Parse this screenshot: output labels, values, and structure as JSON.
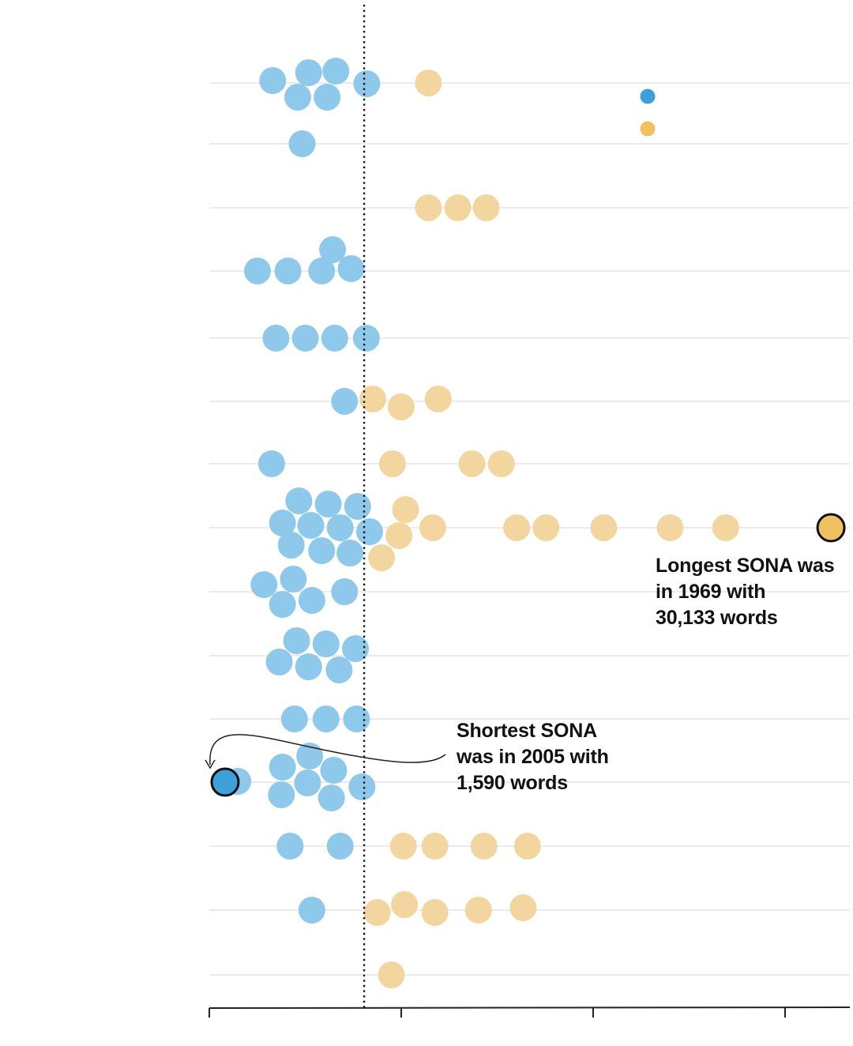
{
  "colors": {
    "below_avg": "#8ec8ea",
    "above_avg": "#f3d69f",
    "highlight_below": "#3ea0d8",
    "highlight_above": "#efc161",
    "legend_below": "#3ea0d8",
    "legend_above": "#efc161",
    "gridline": "#d7d7d7",
    "axis": "#222222"
  },
  "annotations": {
    "longest": "Longest SONA was\nin 1969 with\n30,133 words",
    "shortest": "Shortest SONA\nwas in 2005 with\n1,590 words"
  },
  "chart_data": {
    "type": "scatter",
    "title": "",
    "xlabel": "",
    "ylabel": "",
    "xlim": [
      1590,
      31000
    ],
    "average_line": 8700,
    "rows": 15,
    "series": [
      {
        "group": "below",
        "points": [
          {
            "row": 0,
            "x": 4500
          },
          {
            "row": 0,
            "x": 6150
          },
          {
            "row": 0,
            "x": 7400
          },
          {
            "row": 0,
            "x": 8820
          },
          {
            "row": 0,
            "x": 5650
          },
          {
            "row": 0,
            "x": 7000
          },
          {
            "row": 1,
            "x": 5850
          },
          {
            "row": 3,
            "x": 7250
          },
          {
            "row": 3,
            "x": 3800
          },
          {
            "row": 3,
            "x": 5200
          },
          {
            "row": 3,
            "x": 6750
          },
          {
            "row": 3,
            "x": 8100
          },
          {
            "row": 4,
            "x": 4650
          },
          {
            "row": 4,
            "x": 6000
          },
          {
            "row": 4,
            "x": 7350
          },
          {
            "row": 4,
            "x": 8800
          },
          {
            "row": 5,
            "x": 7800
          },
          {
            "row": 6,
            "x": 4450
          },
          {
            "row": 7,
            "x": 5700
          },
          {
            "row": 7,
            "x": 7050
          },
          {
            "row": 7,
            "x": 8400
          },
          {
            "row": 7,
            "x": 4950
          },
          {
            "row": 7,
            "x": 6250
          },
          {
            "row": 7,
            "x": 7600
          },
          {
            "row": 7,
            "x": 8950
          },
          {
            "row": 7,
            "x": 5350
          },
          {
            "row": 7,
            "x": 6750
          },
          {
            "row": 7,
            "x": 8050
          },
          {
            "row": 8,
            "x": 4100
          },
          {
            "row": 8,
            "x": 5450
          },
          {
            "row": 8,
            "x": 7800
          },
          {
            "row": 8,
            "x": 4950
          },
          {
            "row": 8,
            "x": 6300
          },
          {
            "row": 9,
            "x": 5600
          },
          {
            "row": 9,
            "x": 6950
          },
          {
            "row": 9,
            "x": 8300
          },
          {
            "row": 9,
            "x": 4800
          },
          {
            "row": 9,
            "x": 6150
          },
          {
            "row": 9,
            "x": 7550
          },
          {
            "row": 10,
            "x": 5500
          },
          {
            "row": 10,
            "x": 6950
          },
          {
            "row": 10,
            "x": 8350
          },
          {
            "row": 11,
            "x": 6200
          },
          {
            "row": 11,
            "x": 4950
          },
          {
            "row": 11,
            "x": 7300
          },
          {
            "row": 11,
            "x": 2900
          },
          {
            "row": 11,
            "x": 6100
          },
          {
            "row": 11,
            "x": 8600
          },
          {
            "row": 11,
            "x": 4900
          },
          {
            "row": 11,
            "x": 7200
          },
          {
            "row": 12,
            "x": 5300
          },
          {
            "row": 12,
            "x": 7600
          },
          {
            "row": 13,
            "x": 6300
          }
        ]
      },
      {
        "group": "above",
        "points": [
          {
            "row": 0,
            "x": 11650
          },
          {
            "row": 2,
            "x": 11650
          },
          {
            "row": 2,
            "x": 13000
          },
          {
            "row": 2,
            "x": 14300
          },
          {
            "row": 5,
            "x": 9100
          },
          {
            "row": 5,
            "x": 12100
          },
          {
            "row": 5,
            "x": 10400
          },
          {
            "row": 6,
            "x": 10000
          },
          {
            "row": 6,
            "x": 13650
          },
          {
            "row": 6,
            "x": 15000
          },
          {
            "row": 7,
            "x": 10600
          },
          {
            "row": 7,
            "x": 10300
          },
          {
            "row": 7,
            "x": 11850
          },
          {
            "row": 7,
            "x": 15700
          },
          {
            "row": 7,
            "x": 17050
          },
          {
            "row": 7,
            "x": 19700
          },
          {
            "row": 7,
            "x": 22750
          },
          {
            "row": 7,
            "x": 25300
          },
          {
            "row": 7,
            "x": 9500
          },
          {
            "row": 12,
            "x": 10500
          },
          {
            "row": 12,
            "x": 11950
          },
          {
            "row": 12,
            "x": 14200
          },
          {
            "row": 12,
            "x": 16200
          },
          {
            "row": 13,
            "x": 9300
          },
          {
            "row": 13,
            "x": 10550
          },
          {
            "row": 13,
            "x": 11950
          },
          {
            "row": 13,
            "x": 13950
          },
          {
            "row": 13,
            "x": 16000
          },
          {
            "row": 14,
            "x": 9950
          }
        ]
      }
    ],
    "highlights": [
      {
        "group": "above",
        "row": 7,
        "x": 30133
      },
      {
        "group": "below",
        "row": 11,
        "x": 1590
      }
    ],
    "row_offsets": [
      [
        [
          0,
          0
        ],
        [
          1,
          1
        ],
        [
          0,
          2
        ],
        [
          1,
          3
        ],
        [
          1,
          4
        ],
        [
          0,
          5
        ]
      ],
      [
        [
          1,
          0
        ]
      ],
      [
        [
          2,
          0
        ],
        [
          2,
          1
        ],
        [
          2,
          2
        ]
      ],
      [
        [
          4,
          0
        ],
        [
          3,
          1
        ],
        [
          3,
          2
        ],
        [
          3,
          3
        ],
        [
          3,
          4
        ]
      ],
      [
        [
          4,
          0
        ],
        [
          4,
          1
        ],
        [
          4,
          2
        ],
        [
          4,
          3
        ]
      ],
      [
        [
          5,
          0
        ],
        [
          6,
          0
        ],
        [
          6,
          1
        ],
        [
          6,
          2
        ]
      ],
      [
        [
          6,
          0
        ]
      ],
      [
        [
          7,
          0
        ],
        [
          7,
          1
        ],
        [
          7,
          2
        ],
        [
          7,
          3
        ],
        [
          7,
          4
        ],
        [
          7,
          5
        ],
        [
          7,
          6
        ],
        [
          7,
          7
        ],
        [
          7,
          8
        ],
        [
          7,
          9
        ]
      ],
      [
        [
          8,
          0
        ],
        [
          8,
          1
        ],
        [
          8,
          2
        ],
        [
          8,
          3
        ],
        [
          8,
          4
        ]
      ],
      [
        [
          9,
          0
        ],
        [
          9,
          1
        ],
        [
          9,
          2
        ],
        [
          9,
          3
        ],
        [
          9,
          4
        ],
        [
          9,
          5
        ]
      ],
      [
        [
          10,
          0
        ],
        [
          10,
          1
        ],
        [
          10,
          2
        ]
      ],
      [
        [
          11,
          0
        ],
        [
          11,
          1
        ],
        [
          11,
          2
        ],
        [
          11,
          3
        ],
        [
          11,
          4
        ],
        [
          11,
          5
        ],
        [
          11,
          6
        ]
      ],
      [
        [
          12,
          0
        ],
        [
          12,
          1
        ]
      ],
      [
        [
          13,
          0
        ]
      ]
    ]
  }
}
